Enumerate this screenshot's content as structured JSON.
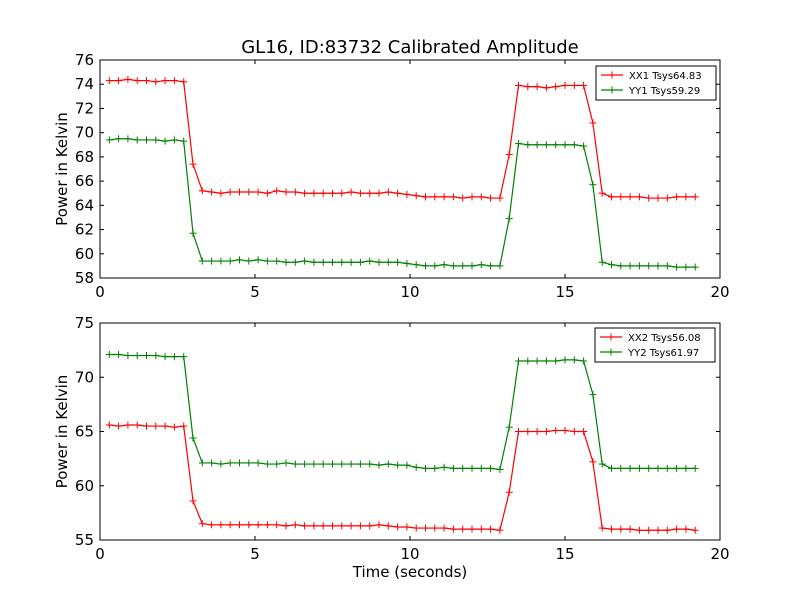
{
  "figure": {
    "title": "GL16, ID:83732 Calibrated Amplitude"
  },
  "chart_data": [
    {
      "type": "line",
      "title": "GL16, ID:83732 Calibrated Amplitude",
      "xlabel": "",
      "ylabel": "Power in Kelvin",
      "xlim": [
        0,
        20
      ],
      "ylim": [
        58,
        76
      ],
      "xticks": [
        "0",
        "5",
        "10",
        "15",
        "20"
      ],
      "yticks": [
        "58",
        "60",
        "62",
        "64",
        "66",
        "68",
        "70",
        "72",
        "74",
        "76"
      ],
      "grid": false,
      "legend_position": "top-right",
      "x": [
        0.3,
        0.6,
        0.9,
        1.2,
        1.5,
        1.8,
        2.1,
        2.4,
        2.7,
        3.0,
        3.3,
        3.6,
        3.9,
        4.2,
        4.5,
        4.8,
        5.1,
        5.4,
        5.7,
        6.0,
        6.3,
        6.6,
        6.9,
        7.2,
        7.5,
        7.8,
        8.1,
        8.4,
        8.7,
        9.0,
        9.3,
        9.6,
        9.9,
        10.2,
        10.5,
        10.8,
        11.1,
        11.4,
        11.7,
        12.0,
        12.3,
        12.6,
        12.9,
        13.2,
        13.5,
        13.8,
        14.1,
        14.4,
        14.7,
        15.0,
        15.3,
        15.6,
        15.9,
        16.2,
        16.5,
        16.8,
        17.1,
        17.4,
        17.7,
        18.0,
        18.3,
        18.6,
        18.9,
        19.2
      ],
      "series": [
        {
          "name": "XX1 Tsys64.83",
          "color": "#ff0000",
          "values": [
            74.3,
            74.3,
            74.4,
            74.3,
            74.3,
            74.2,
            74.3,
            74.3,
            74.2,
            67.4,
            65.2,
            65.1,
            65.0,
            65.1,
            65.1,
            65.1,
            65.1,
            65.0,
            65.2,
            65.1,
            65.1,
            65.0,
            65.0,
            65.0,
            65.0,
            65.0,
            65.1,
            65.0,
            65.0,
            65.0,
            65.1,
            65.0,
            64.9,
            64.8,
            64.7,
            64.7,
            64.7,
            64.7,
            64.6,
            64.7,
            64.7,
            64.6,
            64.6,
            68.2,
            73.9,
            73.8,
            73.8,
            73.7,
            73.8,
            73.9,
            73.9,
            73.9,
            70.8,
            65.0,
            64.7,
            64.7,
            64.7,
            64.7,
            64.6,
            64.6,
            64.6,
            64.7,
            64.7,
            64.7
          ]
        },
        {
          "name": "YY1 Tsys59.29",
          "color": "#008000",
          "values": [
            69.4,
            69.5,
            69.5,
            69.4,
            69.4,
            69.4,
            69.3,
            69.4,
            69.3,
            61.7,
            59.4,
            59.4,
            59.4,
            59.4,
            59.5,
            59.4,
            59.5,
            59.4,
            59.4,
            59.3,
            59.3,
            59.4,
            59.3,
            59.3,
            59.3,
            59.3,
            59.3,
            59.3,
            59.4,
            59.3,
            59.3,
            59.3,
            59.2,
            59.1,
            59.0,
            59.0,
            59.1,
            59.0,
            59.0,
            59.0,
            59.1,
            59.0,
            59.0,
            62.9,
            69.1,
            69.0,
            69.0,
            69.0,
            69.0,
            69.0,
            69.0,
            68.9,
            65.7,
            59.3,
            59.1,
            59.0,
            59.0,
            59.0,
            59.0,
            59.0,
            59.0,
            58.9,
            58.9,
            58.9
          ]
        }
      ]
    },
    {
      "type": "line",
      "title": "",
      "xlabel": "Time (seconds)",
      "ylabel": "Power in Kelvin",
      "xlim": [
        0,
        20
      ],
      "ylim": [
        55,
        75
      ],
      "xticks": [
        "0",
        "5",
        "10",
        "15",
        "20"
      ],
      "yticks": [
        "55",
        "60",
        "65",
        "70",
        "75"
      ],
      "grid": false,
      "legend_position": "top-right",
      "x": [
        0.3,
        0.6,
        0.9,
        1.2,
        1.5,
        1.8,
        2.1,
        2.4,
        2.7,
        3.0,
        3.3,
        3.6,
        3.9,
        4.2,
        4.5,
        4.8,
        5.1,
        5.4,
        5.7,
        6.0,
        6.3,
        6.6,
        6.9,
        7.2,
        7.5,
        7.8,
        8.1,
        8.4,
        8.7,
        9.0,
        9.3,
        9.6,
        9.9,
        10.2,
        10.5,
        10.8,
        11.1,
        11.4,
        11.7,
        12.0,
        12.3,
        12.6,
        12.9,
        13.2,
        13.5,
        13.8,
        14.1,
        14.4,
        14.7,
        15.0,
        15.3,
        15.6,
        15.9,
        16.2,
        16.5,
        16.8,
        17.1,
        17.4,
        17.7,
        18.0,
        18.3,
        18.6,
        18.9,
        19.2
      ],
      "series": [
        {
          "name": "XX2 Tsys56.08",
          "color": "#ff0000",
          "values": [
            65.6,
            65.5,
            65.6,
            65.6,
            65.5,
            65.5,
            65.5,
            65.4,
            65.5,
            58.6,
            56.5,
            56.4,
            56.4,
            56.4,
            56.4,
            56.4,
            56.4,
            56.4,
            56.4,
            56.3,
            56.4,
            56.3,
            56.3,
            56.3,
            56.3,
            56.3,
            56.3,
            56.3,
            56.3,
            56.4,
            56.3,
            56.2,
            56.2,
            56.1,
            56.1,
            56.1,
            56.1,
            56.0,
            56.0,
            56.0,
            56.0,
            56.0,
            55.9,
            59.4,
            65.0,
            65.0,
            65.0,
            65.0,
            65.1,
            65.1,
            65.0,
            65.0,
            62.2,
            56.1,
            56.0,
            56.0,
            56.0,
            55.9,
            55.9,
            55.9,
            55.9,
            56.0,
            56.0,
            55.9
          ]
        },
        {
          "name": "YY2 Tsys61.97",
          "color": "#008000",
          "values": [
            72.1,
            72.1,
            72.0,
            72.0,
            72.0,
            72.0,
            71.9,
            71.9,
            71.9,
            64.4,
            62.1,
            62.1,
            62.0,
            62.1,
            62.1,
            62.1,
            62.1,
            62.0,
            62.0,
            62.1,
            62.0,
            62.0,
            62.0,
            62.0,
            62.0,
            62.0,
            62.0,
            62.0,
            62.0,
            61.9,
            62.0,
            61.9,
            61.9,
            61.7,
            61.6,
            61.6,
            61.7,
            61.6,
            61.6,
            61.6,
            61.6,
            61.6,
            61.5,
            65.4,
            71.5,
            71.5,
            71.5,
            71.5,
            71.5,
            71.6,
            71.6,
            71.5,
            68.4,
            62.0,
            61.6,
            61.6,
            61.6,
            61.6,
            61.6,
            61.6,
            61.6,
            61.6,
            61.6,
            61.6
          ]
        }
      ]
    }
  ]
}
